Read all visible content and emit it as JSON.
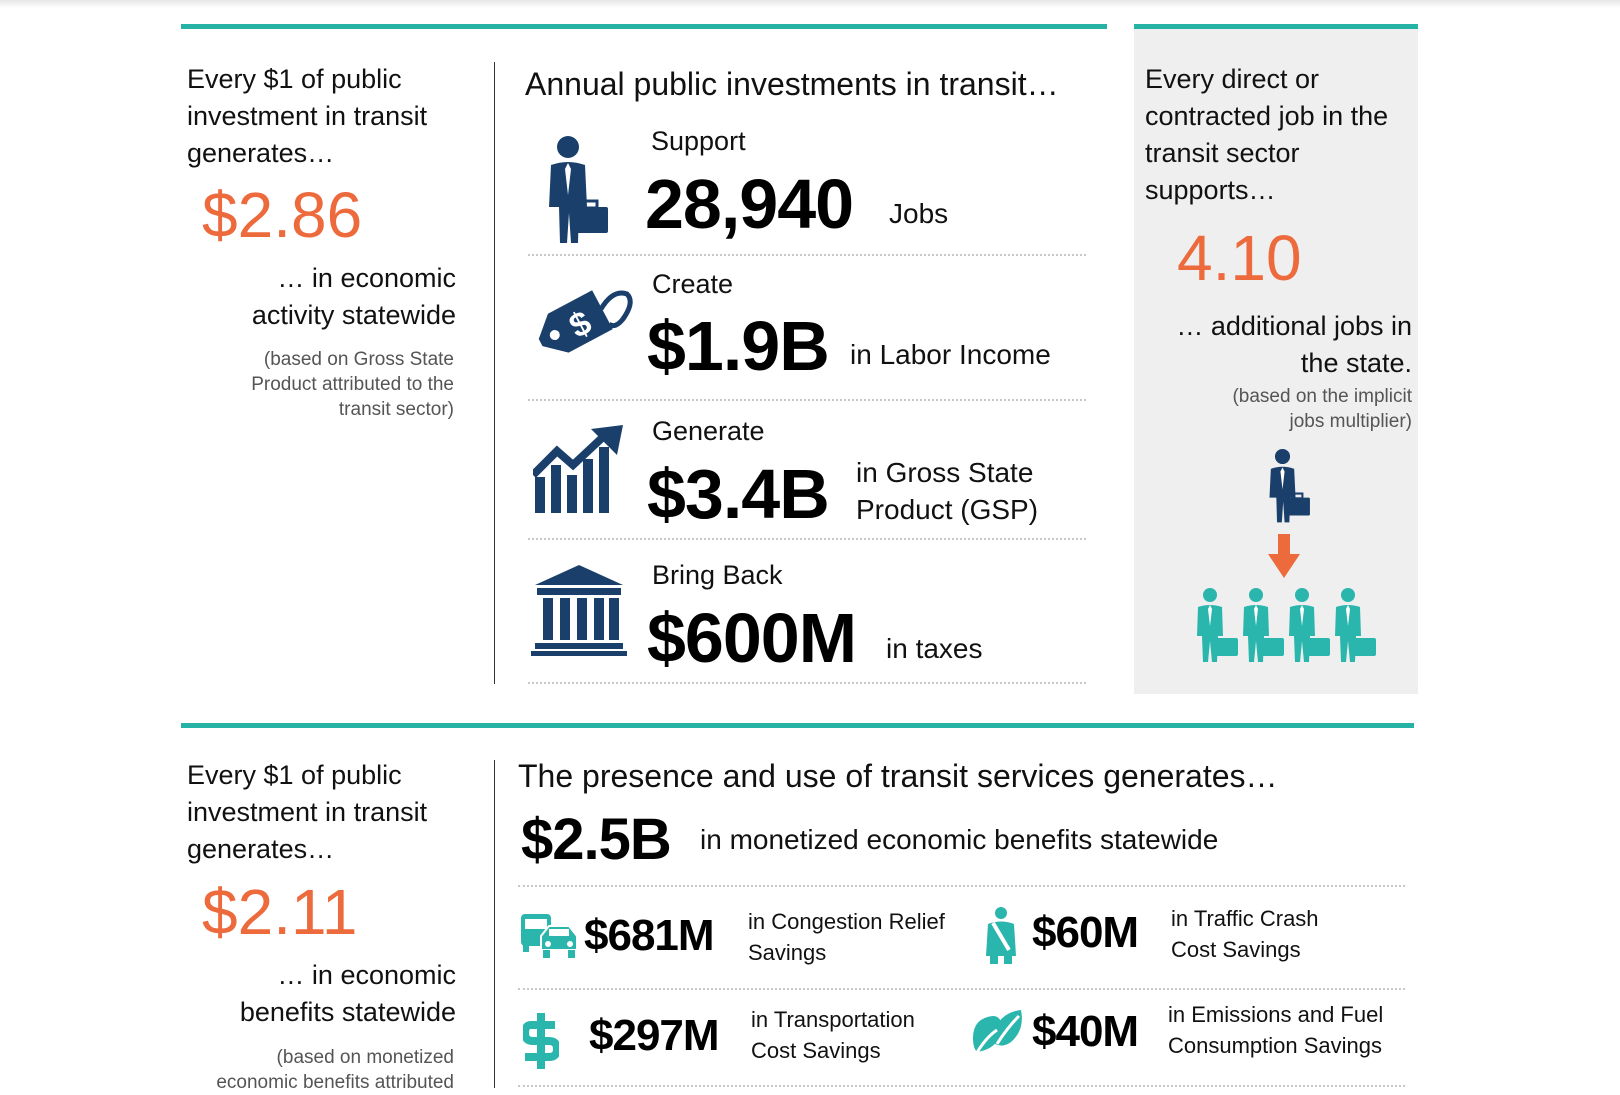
{
  "section1": {
    "left": {
      "intro": "Every $1 of public investment in transit generates…",
      "value": "$2.86",
      "result": "… in economic activity statewide",
      "note": "(based on Gross State Product attributed to the transit sector)"
    },
    "middle": {
      "heading": "Annual public investments in transit…",
      "items": [
        {
          "verb": "Support",
          "value": "28,940",
          "unit": "Jobs",
          "icon": "worker-icon"
        },
        {
          "verb": "Create",
          "value": "$1.9B",
          "unit": "in Labor Income",
          "icon": "price-tag-icon"
        },
        {
          "verb": "Generate",
          "value": "$3.4B",
          "unit": "in Gross State Product (GSP)",
          "icon": "growth-chart-icon"
        },
        {
          "verb": "Bring Back",
          "value": "$600M",
          "unit": "in taxes",
          "icon": "government-building-icon"
        }
      ]
    },
    "right": {
      "intro": "Every direct or contracted job in the transit sector supports…",
      "value": "4.10",
      "result": "… additional jobs in the state.",
      "note": "(based on the implicit jobs multiplier)"
    }
  },
  "section2": {
    "left": {
      "intro": "Every $1 of public investment in transit generates…",
      "value": "$2.11",
      "result": "… in economic benefits statewide",
      "note": "(based on monetized economic benefits attributed"
    },
    "middle": {
      "heading": "The presence and use of transit services generates…",
      "total_value": "$2.5B",
      "total_label": "in monetized economic benefits statewide",
      "items": [
        {
          "value": "$681M",
          "label": "in Congestion Relief Savings",
          "icon": "traffic-cars-icon"
        },
        {
          "value": "$60M",
          "label": "in Traffic Crash Cost Savings",
          "icon": "seatbelt-icon"
        },
        {
          "value": "$297M",
          "label": "in Transportation Cost Savings",
          "icon": "dollar-icon"
        },
        {
          "value": "$40M",
          "label": "in Emissions and Fuel Consumption Savings",
          "icon": "leaf-icon"
        }
      ]
    }
  },
  "colors": {
    "accent": "#26b3a6",
    "orange": "#ec6a3c",
    "navy": "#1b3f6b",
    "teal_icon": "#2ab5ad"
  }
}
